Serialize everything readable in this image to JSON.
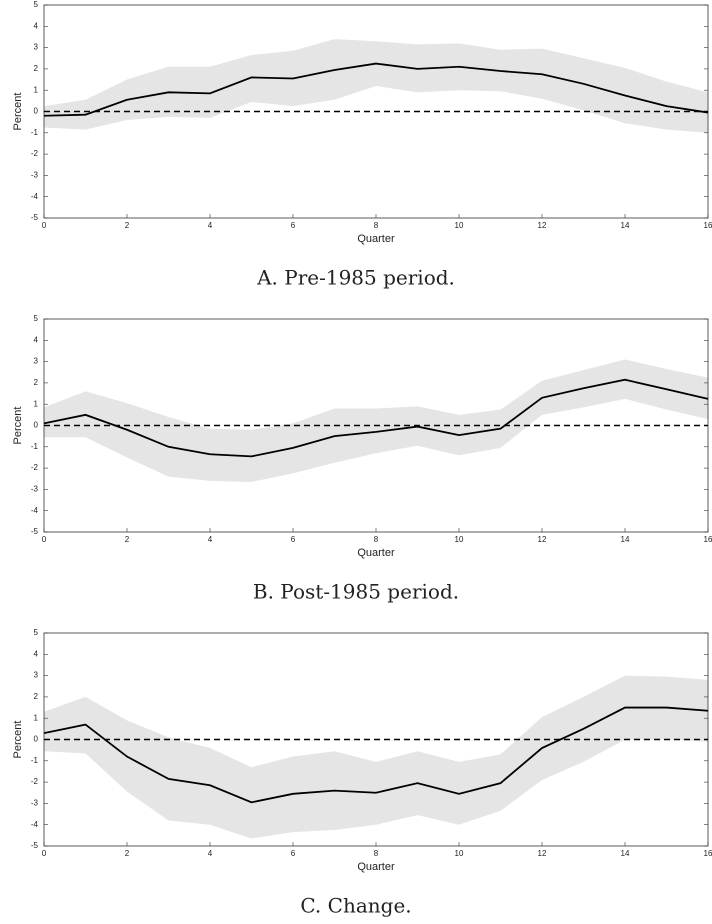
{
  "chart_data": [
    {
      "type": "line",
      "caption": "A. Pre-1985 period.",
      "xlabel": "Quarter",
      "ylabel": "Percent",
      "x": [
        0,
        1,
        2,
        3,
        4,
        5,
        6,
        7,
        8,
        9,
        10,
        11,
        12,
        13,
        14,
        15,
        16
      ],
      "series": [
        {
          "color": "#000000",
          "values": [
            -0.2,
            -0.15,
            0.55,
            0.9,
            0.85,
            1.6,
            1.55,
            1.95,
            2.25,
            2.0,
            2.1,
            1.9,
            1.75,
            1.3,
            0.75,
            0.25,
            -0.05
          ]
        }
      ],
      "band": {
        "color": "#e5e5e5",
        "upper": [
          0.25,
          0.55,
          1.5,
          2.1,
          2.1,
          2.65,
          2.85,
          3.4,
          3.3,
          3.15,
          3.2,
          2.9,
          2.95,
          2.5,
          2.05,
          1.4,
          0.9
        ],
        "lower": [
          -0.75,
          -0.85,
          -0.4,
          -0.25,
          -0.3,
          0.45,
          0.25,
          0.55,
          1.2,
          0.9,
          1.0,
          0.95,
          0.6,
          0.05,
          -0.55,
          -0.85,
          -1.0
        ]
      },
      "hline": 0,
      "xlim": [
        0,
        16
      ],
      "ylim": [
        -5,
        5
      ],
      "xticks": [
        0,
        2,
        4,
        6,
        8,
        10,
        12,
        14,
        16
      ],
      "yticks": [
        -5,
        -4,
        -3,
        -2,
        -1,
        0,
        1,
        2,
        3,
        4,
        5
      ]
    },
    {
      "type": "line",
      "caption": "B. Post-1985 period.",
      "xlabel": "Quarter",
      "ylabel": "Percent",
      "x": [
        0,
        1,
        2,
        3,
        4,
        5,
        6,
        7,
        8,
        9,
        10,
        11,
        12,
        13,
        14,
        15,
        16
      ],
      "series": [
        {
          "color": "#000000",
          "values": [
            0.1,
            0.5,
            -0.2,
            -1.0,
            -1.35,
            -1.45,
            -1.05,
            -0.5,
            -0.3,
            -0.05,
            -0.45,
            -0.15,
            1.3,
            1.75,
            2.15,
            1.7,
            1.25
          ]
        }
      ],
      "band": {
        "color": "#e5e5e5",
        "upper": [
          0.85,
          1.6,
          1.05,
          0.4,
          -0.15,
          -0.2,
          0.1,
          0.8,
          0.8,
          0.9,
          0.5,
          0.75,
          2.1,
          2.6,
          3.1,
          2.65,
          2.25
        ],
        "lower": [
          -0.55,
          -0.55,
          -1.5,
          -2.4,
          -2.6,
          -2.65,
          -2.25,
          -1.75,
          -1.3,
          -0.95,
          -1.4,
          -1.05,
          0.5,
          0.85,
          1.25,
          0.75,
          0.3
        ]
      },
      "hline": 0,
      "xlim": [
        0,
        16
      ],
      "ylim": [
        -5,
        5
      ],
      "xticks": [
        0,
        2,
        4,
        6,
        8,
        10,
        12,
        14,
        16
      ],
      "yticks": [
        -5,
        -4,
        -3,
        -2,
        -1,
        0,
        1,
        2,
        3,
        4,
        5
      ]
    },
    {
      "type": "line",
      "caption": "C. Change.",
      "xlabel": "Quarter",
      "ylabel": "Percent",
      "x": [
        0,
        1,
        2,
        3,
        4,
        5,
        6,
        7,
        8,
        9,
        10,
        11,
        12,
        13,
        14,
        15,
        16
      ],
      "series": [
        {
          "color": "#000000",
          "values": [
            0.3,
            0.7,
            -0.8,
            -1.85,
            -2.15,
            -2.95,
            -2.55,
            -2.4,
            -2.5,
            -2.05,
            -2.55,
            -2.05,
            -0.4,
            0.5,
            1.5,
            1.5,
            1.35
          ]
        }
      ],
      "band": {
        "color": "#e5e5e5",
        "upper": [
          1.3,
          2.0,
          0.9,
          0.1,
          -0.4,
          -1.3,
          -0.8,
          -0.55,
          -1.05,
          -0.55,
          -1.05,
          -0.7,
          1.05,
          2.0,
          3.0,
          2.95,
          2.8
        ],
        "lower": [
          -0.55,
          -0.65,
          -2.45,
          -3.8,
          -4.0,
          -4.65,
          -4.35,
          -4.25,
          -4.0,
          -3.55,
          -4.0,
          -3.35,
          -1.9,
          -1.05,
          0.0,
          0.0,
          -0.1
        ]
      },
      "hline": 0,
      "xlim": [
        0,
        16
      ],
      "ylim": [
        -5,
        5
      ],
      "xticks": [
        0,
        2,
        4,
        6,
        8,
        10,
        12,
        14,
        16
      ],
      "yticks": [
        -5,
        -4,
        -3,
        -2,
        -1,
        0,
        1,
        2,
        3,
        4,
        5
      ]
    }
  ]
}
